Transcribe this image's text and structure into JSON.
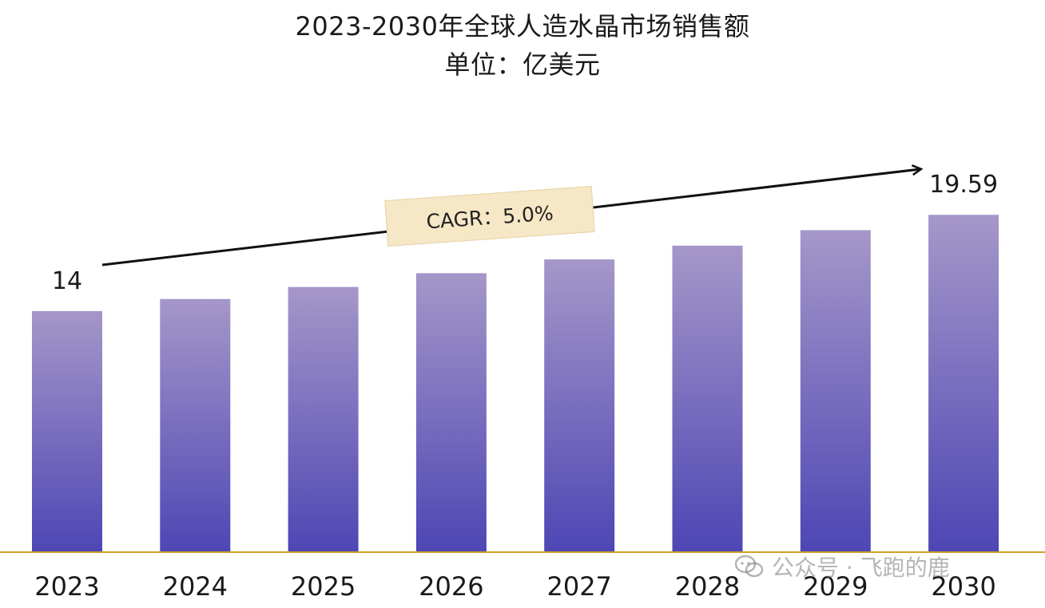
{
  "title": "2023-2030年全球人造水晶市场销售额",
  "subtitle": "单位：亿美元",
  "annotation": {
    "cagr_text": "CAGR：5.0%"
  },
  "watermark": {
    "icon": "wechat-icon",
    "text": "公众号 · 飞跑的鹿"
  },
  "colors": {
    "bar_top": "#a597c9",
    "bar_bottom": "#4e46b4",
    "baseline": "#c9a227",
    "arrow": "#111111"
  },
  "chart_data": {
    "type": "bar",
    "categories": [
      "2023",
      "2024",
      "2025",
      "2026",
      "2027",
      "2028",
      "2029",
      "2030"
    ],
    "values": [
      14,
      14.7,
      15.4,
      16.2,
      17.0,
      17.8,
      18.7,
      19.59
    ],
    "data_labels": {
      "2023": "14",
      "2030": "19.59"
    },
    "ylim": [
      0,
      21.5
    ],
    "grid": false,
    "legend": "none"
  }
}
